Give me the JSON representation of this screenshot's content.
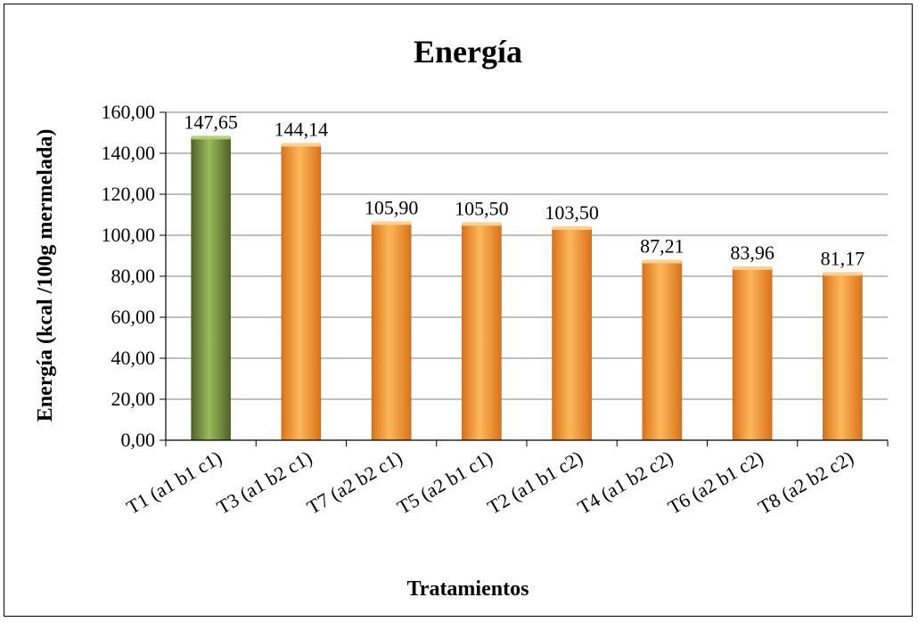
{
  "chart_data": {
    "type": "bar",
    "title": "Energía",
    "xlabel": "Tratamientos",
    "ylabel": "Energía (kcal /100g mermelada)",
    "categories": [
      "T1 (a1 b1 c1)",
      "T3 (a1 b2 c1)",
      "T7 (a2 b2 c1)",
      "T5 (a2 b1 c1)",
      "T2 (a1 b1 c2)",
      "T4 (a1 b2 c2)",
      "T6 (a2 b1 c2)",
      "T8 (a2 b2 c2)"
    ],
    "values": [
      147.65,
      144.14,
      105.9,
      105.5,
      103.5,
      87.21,
      83.96,
      81.17
    ],
    "data_labels": [
      "147,65",
      "144,14",
      "105,90",
      "105,50",
      "103,50",
      "87,21",
      "83,96",
      "81,17"
    ],
    "ylim": [
      0,
      160
    ],
    "yticks": [
      0,
      20,
      40,
      60,
      80,
      100,
      120,
      140,
      160
    ],
    "ytick_labels": [
      "0,00",
      "20,00",
      "40,00",
      "60,00",
      "80,00",
      "100,00",
      "120,00",
      "140,00",
      "160,00"
    ],
    "grid": true,
    "legend": "none",
    "colors": {
      "highlight": "#77933c",
      "highlight_light": "#b3cf7a",
      "bar": "#f7941d",
      "bar_light": "#fcd08e",
      "grid": "#7f7f7f",
      "axis": "#000000"
    },
    "highlight_index": 0
  }
}
